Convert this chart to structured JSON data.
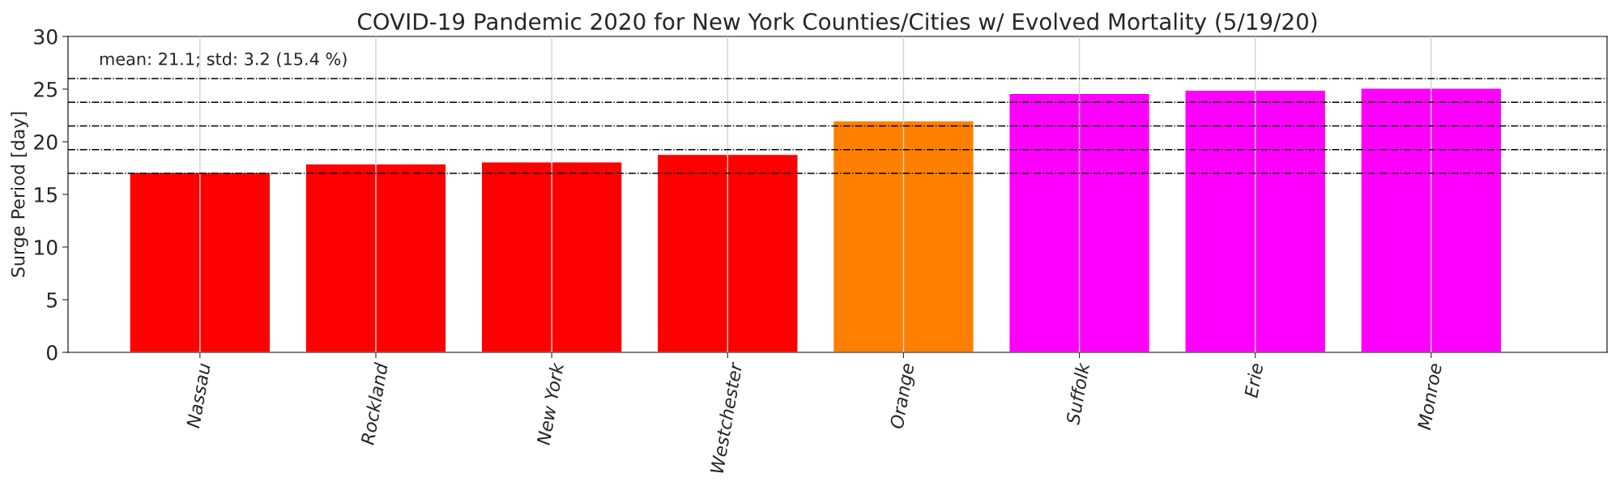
{
  "chart_data": {
    "type": "bar",
    "title": "COVID-19 Pandemic 2020 for New York Counties/Cities w/ Evolved Mortality (5/19/20)",
    "ylabel": "Surge Period [day]",
    "categories": [
      "Nassau",
      "Rockland",
      "New York",
      "Westchester",
      "Orange",
      "Suffolk",
      "Erie",
      "Monroe"
    ],
    "values": [
      17.1,
      17.9,
      18.1,
      18.8,
      22.0,
      24.6,
      24.9,
      25.1
    ],
    "colors": [
      "#ff0000",
      "#ff0000",
      "#ff0000",
      "#ff0000",
      "#ff8000",
      "#ff00ff",
      "#ff00ff",
      "#ff00ff"
    ],
    "ylim": [
      0,
      30
    ],
    "yticks": [
      0,
      5,
      10,
      15,
      20,
      25,
      30
    ],
    "grid": "x",
    "annotations": [
      "mean: 21.1; std: 3.2 (15.4 %)"
    ],
    "ref_lines": [
      {
        "axis": "y",
        "value": 17.0,
        "color": "#000000",
        "line_style": "dashdot"
      },
      {
        "axis": "y",
        "value": 19.25,
        "color": "#000000",
        "line_style": "dashdot"
      },
      {
        "axis": "y",
        "value": 21.5,
        "color": "#000000",
        "line_style": "dashdot"
      },
      {
        "axis": "y",
        "value": 23.75,
        "color": "#000000",
        "line_style": "dashdot"
      },
      {
        "axis": "y",
        "value": 26.0,
        "color": "#000000",
        "line_style": "dashdot"
      }
    ]
  }
}
